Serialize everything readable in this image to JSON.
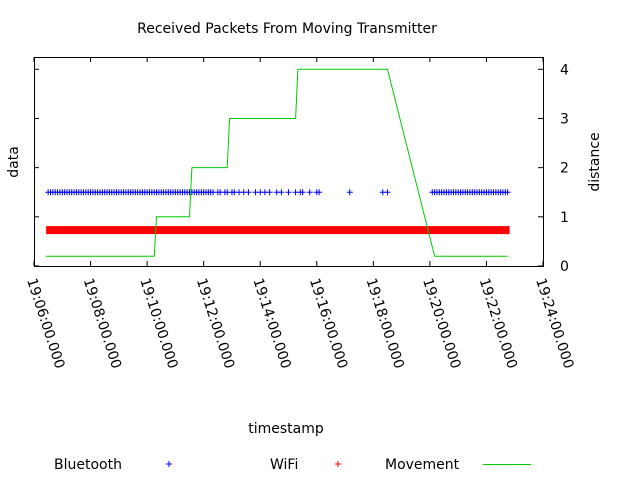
{
  "chart_data": {
    "type": "scatter",
    "title": "Received Packets From Moving Transmitter",
    "xlabel": "timestamp",
    "ylabel": "data",
    "y2label": "distance",
    "x_ticks": [
      "19:06:00.000",
      "19:08:00.000",
      "19:10:00.000",
      "19:12:00.000",
      "19:14:00.000",
      "19:16:00.000",
      "19:18:00.000",
      "19:20:00.000",
      "19:22:00.000",
      "19:24:00.000"
    ],
    "xlim": [
      "19:06:00",
      "19:24:00"
    ],
    "y2_ticks": [
      "0",
      "1",
      "2",
      "3",
      "4"
    ],
    "y2lim": [
      0,
      4.25
    ],
    "grid": false,
    "legend_position": "bottom",
    "series": [
      {
        "name": "Bluetooth",
        "kind": "points",
        "marker": "+",
        "color": "#0000ff",
        "y2": 1.5,
        "x": [
          "19:06:30",
          "19:06:35",
          "19:06:40",
          "19:06:45",
          "19:06:50",
          "19:06:55",
          "19:07:00",
          "19:07:05",
          "19:07:10",
          "19:07:15",
          "19:07:20",
          "19:07:25",
          "19:07:30",
          "19:07:35",
          "19:07:40",
          "19:07:45",
          "19:07:50",
          "19:07:55",
          "19:08:00",
          "19:08:05",
          "19:08:10",
          "19:08:15",
          "19:08:20",
          "19:08:25",
          "19:08:30",
          "19:08:35",
          "19:08:40",
          "19:08:45",
          "19:08:50",
          "19:08:55",
          "19:09:00",
          "19:09:05",
          "19:09:10",
          "19:09:15",
          "19:09:20",
          "19:09:25",
          "19:09:30",
          "19:09:35",
          "19:09:40",
          "19:09:45",
          "19:09:50",
          "19:09:55",
          "19:10:00",
          "19:10:05",
          "19:10:10",
          "19:10:15",
          "19:10:20",
          "19:10:25",
          "19:10:30",
          "19:10:35",
          "19:10:40",
          "19:10:45",
          "19:10:50",
          "19:10:55",
          "19:11:00",
          "19:11:05",
          "19:11:10",
          "19:11:15",
          "19:11:20",
          "19:11:25",
          "19:11:30",
          "19:11:35",
          "19:11:40",
          "19:11:45",
          "19:11:50",
          "19:11:55",
          "19:12:00",
          "19:12:05",
          "19:12:10",
          "19:12:15",
          "19:12:20",
          "19:12:30",
          "19:12:35",
          "19:12:45",
          "19:12:50",
          "19:13:00",
          "19:13:05",
          "19:13:15",
          "19:13:25",
          "19:13:35",
          "19:13:50",
          "19:14:00",
          "19:14:10",
          "19:14:20",
          "19:14:35",
          "19:14:45",
          "19:15:00",
          "19:15:15",
          "19:15:25",
          "19:15:30",
          "19:15:45",
          "19:16:00",
          "19:16:05",
          "19:17:10",
          "19:18:20",
          "19:18:30",
          "19:20:05",
          "19:20:10",
          "19:20:15",
          "19:20:20",
          "19:20:25",
          "19:20:30",
          "19:20:35",
          "19:20:40",
          "19:20:45",
          "19:20:50",
          "19:20:55",
          "19:21:00",
          "19:21:05",
          "19:21:10",
          "19:21:15",
          "19:21:20",
          "19:21:25",
          "19:21:30",
          "19:21:35",
          "19:21:40",
          "19:21:45",
          "19:21:50",
          "19:21:55",
          "19:22:00",
          "19:22:05",
          "19:22:10",
          "19:22:15",
          "19:22:20",
          "19:22:25",
          "19:22:30",
          "19:22:35",
          "19:22:40",
          "19:22:45"
        ]
      },
      {
        "name": "WiFi",
        "kind": "band",
        "marker": "+",
        "color": "#ff0000",
        "y2": 0.73,
        "x_range": [
          "19:06:30",
          "19:22:45"
        ]
      },
      {
        "name": "Movement",
        "kind": "line",
        "color": "#00cc00",
        "x": [
          "19:06:25",
          "19:10:15",
          "19:10:20",
          "19:11:30",
          "19:11:35",
          "19:12:50",
          "19:12:55",
          "19:15:15",
          "19:15:20",
          "19:18:30",
          "19:20:10",
          "19:22:45"
        ],
        "y2": [
          0.2,
          0.2,
          1,
          1,
          2,
          2,
          3,
          3,
          4,
          4,
          0.2,
          0.2
        ]
      }
    ]
  }
}
